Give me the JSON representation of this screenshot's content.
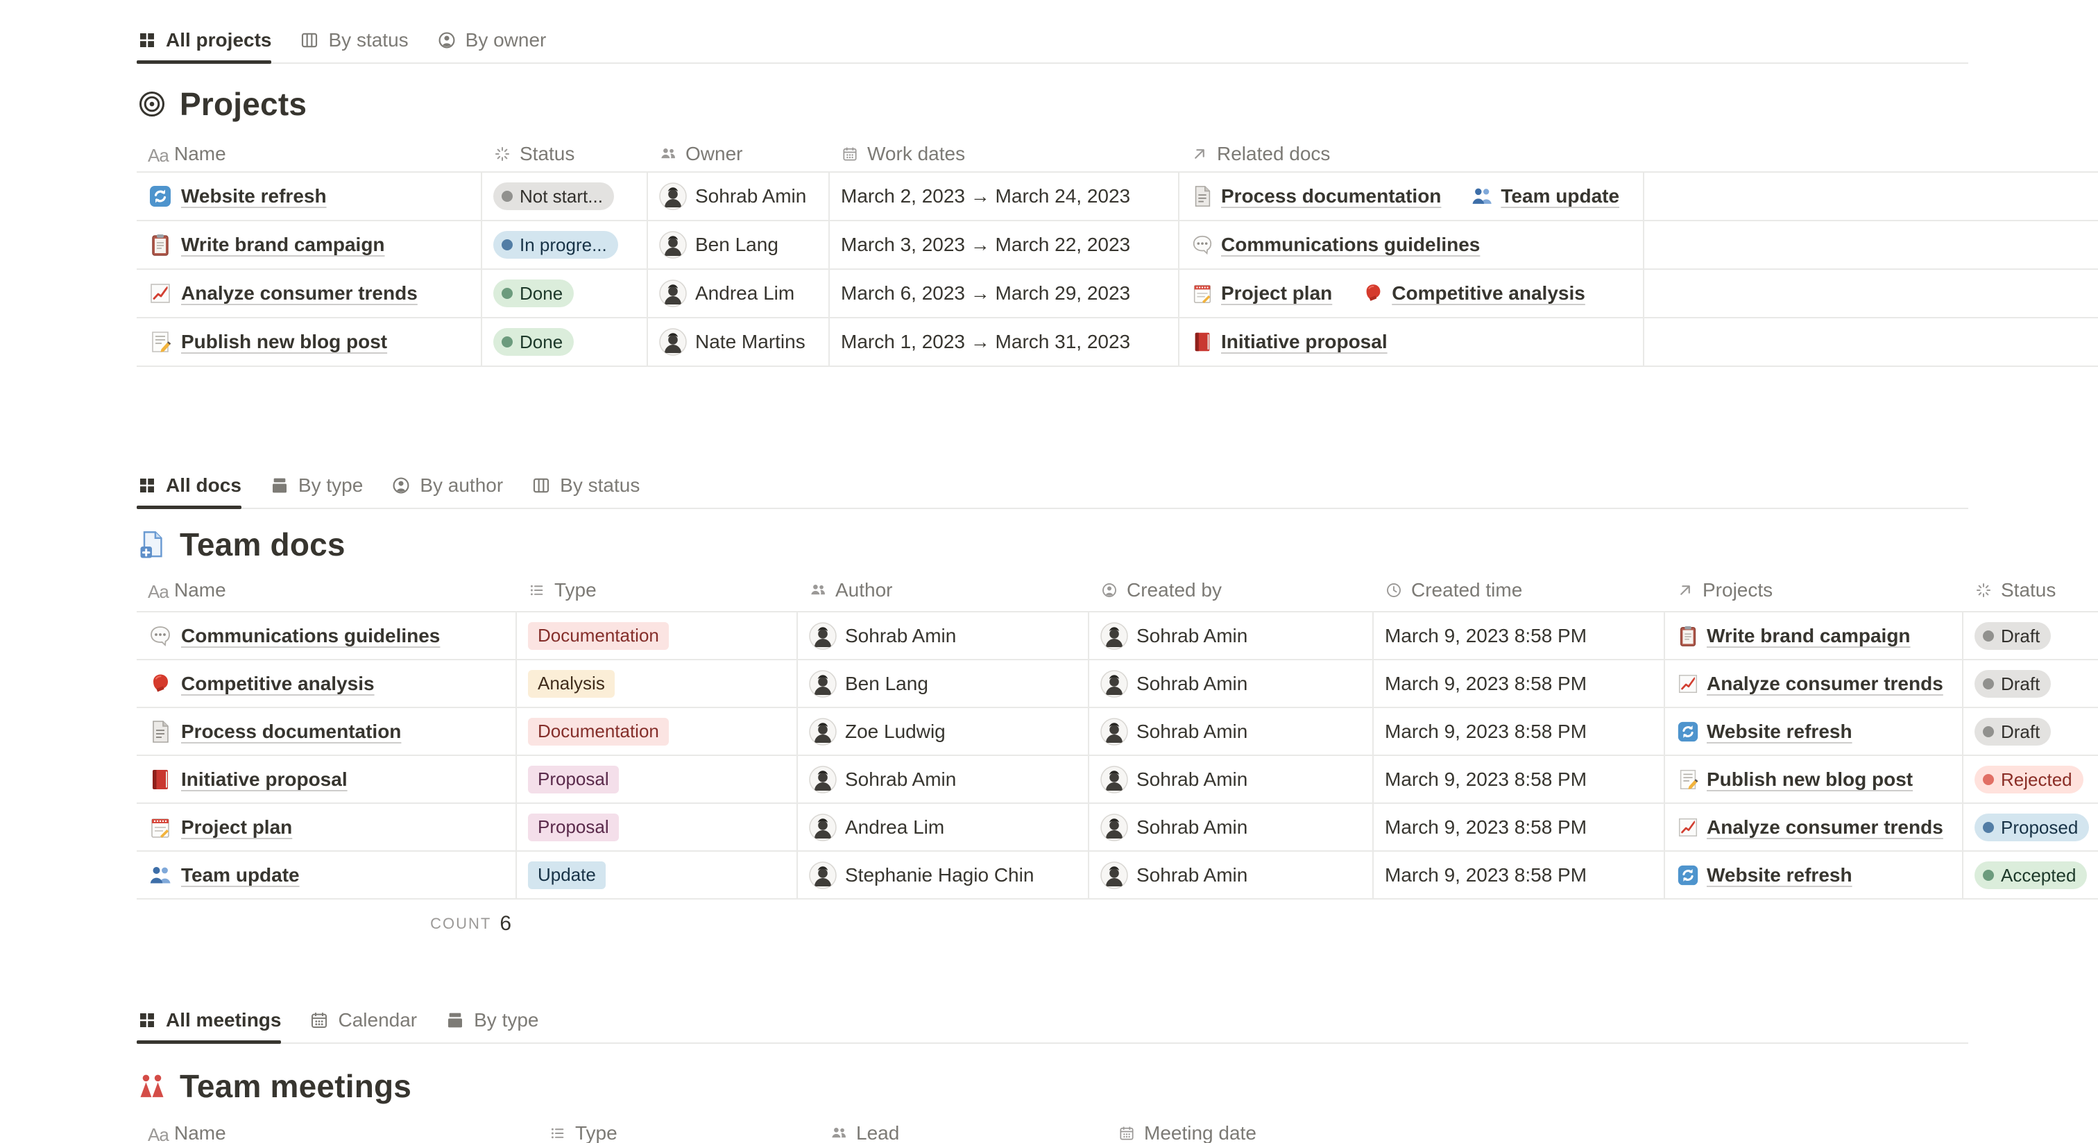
{
  "projects": {
    "tabs": [
      {
        "label": "All projects",
        "icon": "grid",
        "active": true
      },
      {
        "label": "By status",
        "icon": "board",
        "active": false
      },
      {
        "label": "By owner",
        "icon": "person-circle",
        "active": false
      }
    ],
    "title": "Projects",
    "title_icon": "target",
    "columns": [
      {
        "label": "Name",
        "icon": "aa"
      },
      {
        "label": "Status",
        "icon": "status"
      },
      {
        "label": "Owner",
        "icon": "people"
      },
      {
        "label": "Work dates",
        "icon": "calendar"
      },
      {
        "label": "Related docs",
        "icon": "relation"
      }
    ],
    "rows": [
      {
        "icon": "refresh",
        "name": "Website refresh",
        "status": {
          "label": "Not start...",
          "color": "gray"
        },
        "owner": "Sohrab Amin",
        "work_dates": "March 2, 2023 → March 24, 2023",
        "related": [
          {
            "icon": "page",
            "label": "Process documentation"
          },
          {
            "icon": "busts-blue",
            "label": "Team update"
          }
        ]
      },
      {
        "icon": "clipboard",
        "name": "Write brand campaign",
        "status": {
          "label": "In progre...",
          "color": "blue"
        },
        "owner": "Ben Lang",
        "work_dates": "March 3, 2023 → March 22, 2023",
        "related": [
          {
            "icon": "speech",
            "label": "Communications guidelines"
          }
        ]
      },
      {
        "icon": "chart",
        "name": "Analyze consumer trends",
        "status": {
          "label": "Done",
          "color": "green"
        },
        "owner": "Andrea Lim",
        "work_dates": "March 6, 2023 → March 29, 2023",
        "related": [
          {
            "icon": "notepad",
            "label": "Project plan"
          },
          {
            "icon": "glove",
            "label": "Competitive analysis"
          }
        ]
      },
      {
        "icon": "memo",
        "name": "Publish new blog post",
        "status": {
          "label": "Done",
          "color": "green"
        },
        "owner": "Nate Martins",
        "work_dates": "March 1, 2023 → March 31, 2023",
        "related": [
          {
            "icon": "book",
            "label": "Initiative proposal"
          }
        ]
      }
    ]
  },
  "docs": {
    "tabs": [
      {
        "label": "All docs",
        "icon": "grid",
        "active": true
      },
      {
        "label": "By type",
        "icon": "archive",
        "active": false
      },
      {
        "label": "By author",
        "icon": "person-circle",
        "active": false
      },
      {
        "label": "By status",
        "icon": "board",
        "active": false
      }
    ],
    "title": "Team docs",
    "title_icon": "doc-blue",
    "columns": [
      {
        "label": "Name",
        "icon": "aa"
      },
      {
        "label": "Type",
        "icon": "list"
      },
      {
        "label": "Author",
        "icon": "people"
      },
      {
        "label": "Created by",
        "icon": "person-circle"
      },
      {
        "label": "Created time",
        "icon": "clock"
      },
      {
        "label": "Projects",
        "icon": "relation"
      },
      {
        "label": "Status",
        "icon": "status"
      }
    ],
    "rows": [
      {
        "icon": "speech",
        "name": "Communications guidelines",
        "type": {
          "label": "Documentation",
          "color": "red"
        },
        "author": "Sohrab Amin",
        "created_by": "Sohrab Amin",
        "created_time": "March 9, 2023 8:58 PM",
        "project": {
          "icon": "clipboard",
          "label": "Write brand campaign"
        },
        "status": {
          "label": "Draft",
          "color": "gray"
        }
      },
      {
        "icon": "glove",
        "name": "Competitive analysis",
        "type": {
          "label": "Analysis",
          "color": "yellow"
        },
        "author": "Ben Lang",
        "created_by": "Sohrab Amin",
        "created_time": "March 9, 2023 8:58 PM",
        "project": {
          "icon": "chart",
          "label": "Analyze consumer trends"
        },
        "status": {
          "label": "Draft",
          "color": "gray"
        }
      },
      {
        "icon": "page",
        "name": "Process documentation",
        "type": {
          "label": "Documentation",
          "color": "red"
        },
        "author": "Zoe Ludwig",
        "created_by": "Sohrab Amin",
        "created_time": "March 9, 2023 8:58 PM",
        "project": {
          "icon": "refresh",
          "label": "Website refresh"
        },
        "status": {
          "label": "Draft",
          "color": "gray"
        }
      },
      {
        "icon": "book",
        "name": "Initiative proposal",
        "type": {
          "label": "Proposal",
          "color": "pink"
        },
        "author": "Sohrab Amin",
        "created_by": "Sohrab Amin",
        "created_time": "March 9, 2023 8:58 PM",
        "project": {
          "icon": "memo",
          "label": "Publish new blog post"
        },
        "status": {
          "label": "Rejected",
          "color": "red"
        }
      },
      {
        "icon": "notepad",
        "name": "Project plan",
        "type": {
          "label": "Proposal",
          "color": "pink"
        },
        "author": "Andrea Lim",
        "created_by": "Sohrab Amin",
        "created_time": "March 9, 2023 8:58 PM",
        "project": {
          "icon": "chart",
          "label": "Analyze consumer trends"
        },
        "status": {
          "label": "Proposed",
          "color": "blue"
        }
      },
      {
        "icon": "busts-blue",
        "name": "Team update",
        "type": {
          "label": "Update",
          "color": "blue"
        },
        "author": "Stephanie Hagio Chin",
        "created_by": "Sohrab Amin",
        "created_time": "March 9, 2023 8:58 PM",
        "project": {
          "icon": "refresh",
          "label": "Website refresh"
        },
        "status": {
          "label": "Accepted",
          "color": "green"
        }
      }
    ],
    "count_label": "COUNT",
    "count_value": "6"
  },
  "meetings": {
    "tabs": [
      {
        "label": "All meetings",
        "icon": "grid",
        "active": true
      },
      {
        "label": "Calendar",
        "icon": "calendar",
        "active": false
      },
      {
        "label": "By type",
        "icon": "archive",
        "active": false
      }
    ],
    "title": "Team meetings",
    "title_icon": "people-red",
    "columns": [
      {
        "label": "Name",
        "icon": "aa"
      },
      {
        "label": "Type",
        "icon": "list"
      },
      {
        "label": "Lead",
        "icon": "people"
      },
      {
        "label": "Meeting date",
        "icon": "calendar"
      }
    ]
  },
  "colors": {
    "text": "#37352f",
    "muted": "#7c7a75",
    "border": "#e9e9e7",
    "pill_gray_bg": "#e3e2e0",
    "pill_blue_bg": "#d3e5ef",
    "pill_green_bg": "#dbeddb",
    "pill_red_bg": "#ffe2dd",
    "badge_red_bg": "#fbe4e2",
    "badge_yellow_bg": "#fbeed7",
    "badge_pink_bg": "#f4dfea",
    "badge_blue_bg": "#d3e5ef"
  }
}
